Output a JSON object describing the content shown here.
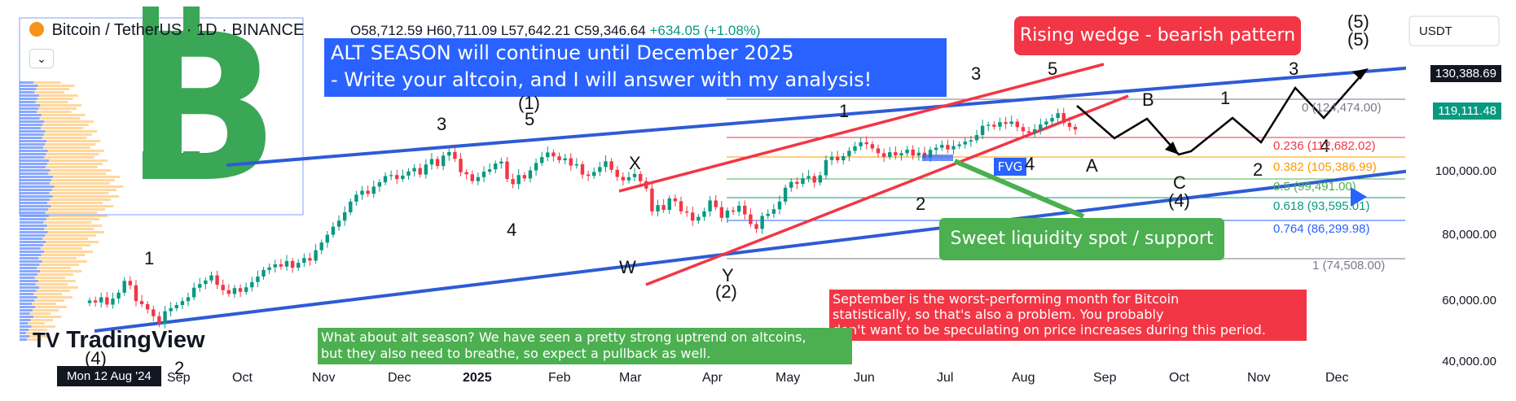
{
  "header": {
    "symbol": "Bitcoin / TetherUS · 1D · BINANCE",
    "open": "O58,712.59",
    "high": "H60,711.09",
    "low": "L57,642.21",
    "close": "C59,346.64",
    "change": "+634.05 (+1.08%)",
    "currency": "USDT",
    "collapse_icon": "chevron-down-icon"
  },
  "annotations": {
    "alt_season_line1": "ALT SEASON will continue until December 2025",
    "alt_season_line2": "- Write your altcoin, and I will answer with my analysis!",
    "rising_wedge": "Rising wedge - bearish pattern",
    "sweet_spot": "Sweet liquidity spot / support",
    "fvg": "FVG",
    "september_note": [
      "September is the worst-performing month for Bitcoin",
      "statistically, so that's also a problem. You probably",
      "don't want to be speculating on price increases during this period."
    ],
    "alt_note": [
      "What about alt season? We have seen a pretty strong uptrend on altcoins,",
      "but they also need to breathe, so expect a pullback as well."
    ]
  },
  "wave_labels": {
    "w1": "1",
    "w3a": "3",
    "w4a": "4",
    "w5a": "(1)",
    "w5b": "5",
    "wX": "X",
    "wW": "W",
    "wY": "Y",
    "w2p": "(2)",
    "v1": "1",
    "v2": "2",
    "v3": "3",
    "v4": "4",
    "v5": "5",
    "vA": "A",
    "vB": "B",
    "vC": "C",
    "v4p": "(4)",
    "f1": "1",
    "f2": "2",
    "f3": "3",
    "f4": "4",
    "f5": "(5)",
    "f5b": "(5)",
    "left4": "(4)",
    "left2": "2"
  },
  "fib_levels": [
    {
      "ratio": "0",
      "price": "(124,474.00)",
      "color": "#787b86"
    },
    {
      "ratio": "0.236",
      "price": "(112,682.02)",
      "color": "#f23645"
    },
    {
      "ratio": "0.382",
      "price": "(105,386.99)",
      "color": "#ff9800"
    },
    {
      "ratio": "0.5",
      "price": "(99,491.00)",
      "color": "#4caf50"
    },
    {
      "ratio": "0.618",
      "price": "(93,595.01)",
      "color": "#089981"
    },
    {
      "ratio": "0.764",
      "price": "(86,299.98)",
      "color": "#2962ff"
    },
    {
      "ratio": "1",
      "price": "(74,508.00)",
      "color": "#787b86"
    }
  ],
  "price_labels": {
    "p130": "130,388.69",
    "p119": "119,111.48",
    "p100": "100,000.00",
    "p80": "80,000.00",
    "p60": "60,000.00",
    "p40": "40,000.00"
  },
  "x_axis": {
    "current_date": "Mon 12 Aug '24",
    "ticks": [
      "Sep",
      "Oct",
      "Nov",
      "Dec",
      "2025",
      "Feb",
      "Mar",
      "Apr",
      "May",
      "Jun",
      "Jul",
      "Aug",
      "Sep",
      "Oct",
      "Nov",
      "Dec"
    ]
  },
  "branding": {
    "logo_text": "TradingView"
  },
  "colors": {
    "up": "#089981",
    "down": "#f23645",
    "wedge": "#f23645",
    "channel": "#2e5bd6",
    "blue_box": "#2962ff",
    "green_box": "#4caf50",
    "red_box": "#f23645",
    "btc_green": "#3aa757"
  },
  "chart_data": {
    "type": "candlestick",
    "x_start": "2024-08-12",
    "ylim": [
      40000,
      140000
    ],
    "scale": "log",
    "price_axis": [
      60000,
      80000,
      100000,
      120000
    ],
    "closes": [
      59347,
      58900,
      60100,
      58400,
      59800,
      61200,
      64100,
      63000,
      59200,
      58500,
      57300,
      55800,
      54100,
      56900,
      57600,
      58300,
      59200,
      60100,
      62400,
      63300,
      64200,
      65500,
      63100,
      61800,
      60900,
      62300,
      61400,
      62500,
      63800,
      65200,
      66900,
      67600,
      68400,
      67800,
      69300,
      67500,
      68800,
      70100,
      69400,
      72300,
      74500,
      76800,
      79300,
      81200,
      83900,
      87500,
      89900,
      91300,
      90200,
      92800,
      94400,
      96700,
      97100,
      95600,
      96900,
      98500,
      99800,
      97300,
      101200,
      103400,
      100600,
      104800,
      106300,
      103500,
      98200,
      97400,
      94800,
      96300,
      98400,
      99300,
      101600,
      102400,
      95600,
      93700,
      97100,
      95800,
      98900,
      101800,
      104200,
      106100,
      104500,
      102900,
      103700,
      100800,
      101300,
      97300,
      96800,
      98300,
      100200,
      102500,
      99100,
      96400,
      95100,
      96300,
      97500,
      94800,
      92100,
      84200,
      86300,
      84700,
      88600,
      87600,
      84200,
      83800,
      81200,
      82400,
      84200,
      87900,
      85600,
      82100,
      84500,
      84100,
      86100,
      83200,
      80100,
      78600,
      82700,
      83400,
      84900,
      87500,
      92400,
      94500,
      93800,
      95900,
      96700,
      94300,
      97000,
      103000,
      104300,
      102900,
      104600,
      106800,
      108700,
      110400,
      109600,
      107800,
      105800,
      104300,
      106200,
      104900,
      105800,
      107300,
      104800,
      106000,
      103900,
      107200,
      108100,
      109300,
      107400,
      108800,
      109500,
      110700,
      111300,
      113600,
      117800,
      118300,
      117400,
      119500,
      118700,
      119800,
      117200,
      115300,
      114600,
      116200,
      118400,
      119800,
      121500,
      123800,
      119200,
      117300,
      116100
    ]
  }
}
